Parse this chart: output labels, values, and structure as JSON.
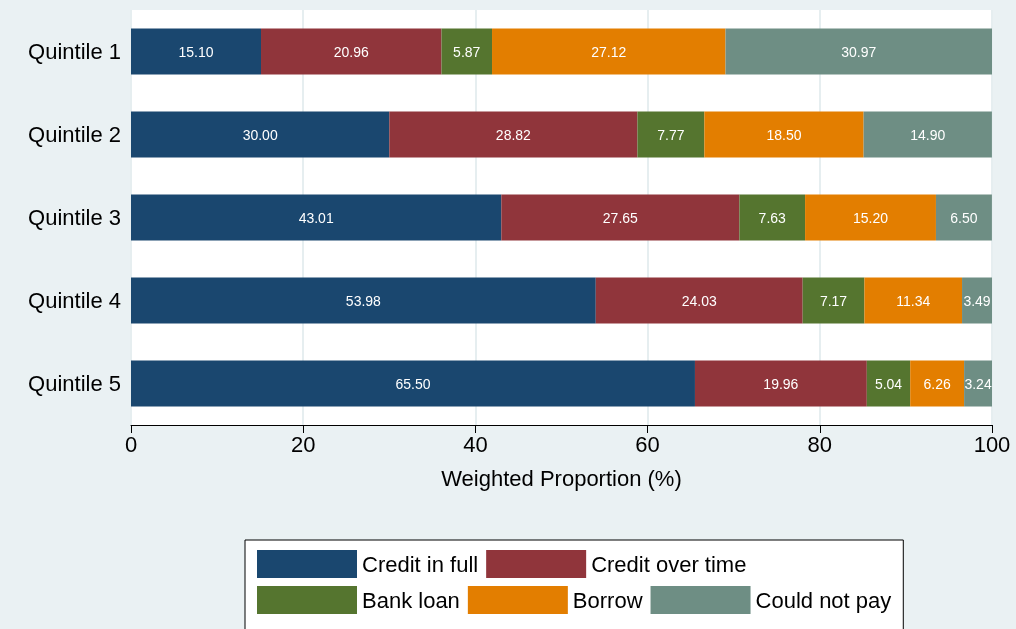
{
  "chart_data": {
    "type": "bar",
    "orientation": "horizontal",
    "stacked": true,
    "categories": [
      "Quintile 1",
      "Quintile 2",
      "Quintile 3",
      "Quintile 4",
      "Quintile 5"
    ],
    "series": [
      {
        "name": "Credit in full",
        "color": "#1a476f",
        "values": [
          15.1,
          30.0,
          43.01,
          53.98,
          65.5
        ],
        "value_labels": [
          "15.10",
          "30.00",
          "43.01",
          "53.98",
          "65.50"
        ]
      },
      {
        "name": "Credit over time",
        "color": "#90353b",
        "values": [
          20.96,
          28.82,
          27.65,
          24.03,
          19.96
        ],
        "value_labels": [
          "20.96",
          "28.82",
          "27.65",
          "24.03",
          "19.96"
        ]
      },
      {
        "name": "Bank loan",
        "color": "#55752f",
        "values": [
          5.87,
          7.77,
          7.63,
          7.17,
          5.04
        ],
        "value_labels": [
          "5.87",
          "7.77",
          "7.63",
          "7.17",
          "5.04"
        ]
      },
      {
        "name": "Borrow",
        "color": "#e37e00",
        "values": [
          27.12,
          18.5,
          15.2,
          11.34,
          6.26
        ],
        "value_labels": [
          "27.12",
          "18.50",
          "15.20",
          "11.34",
          "6.26"
        ]
      },
      {
        "name": "Could not pay",
        "color": "#6e8e84",
        "values": [
          30.97,
          14.9,
          6.5,
          3.49,
          3.24
        ],
        "value_labels": [
          "30.97",
          "14.90",
          "6.50",
          "3.49",
          "3.24"
        ]
      }
    ],
    "xlim": [
      0,
      100
    ],
    "xticks": [
      0,
      20,
      40,
      60,
      80,
      100
    ],
    "xlabel": "Weighted Proportion (%)",
    "grid": "x",
    "legend": "bottom"
  }
}
